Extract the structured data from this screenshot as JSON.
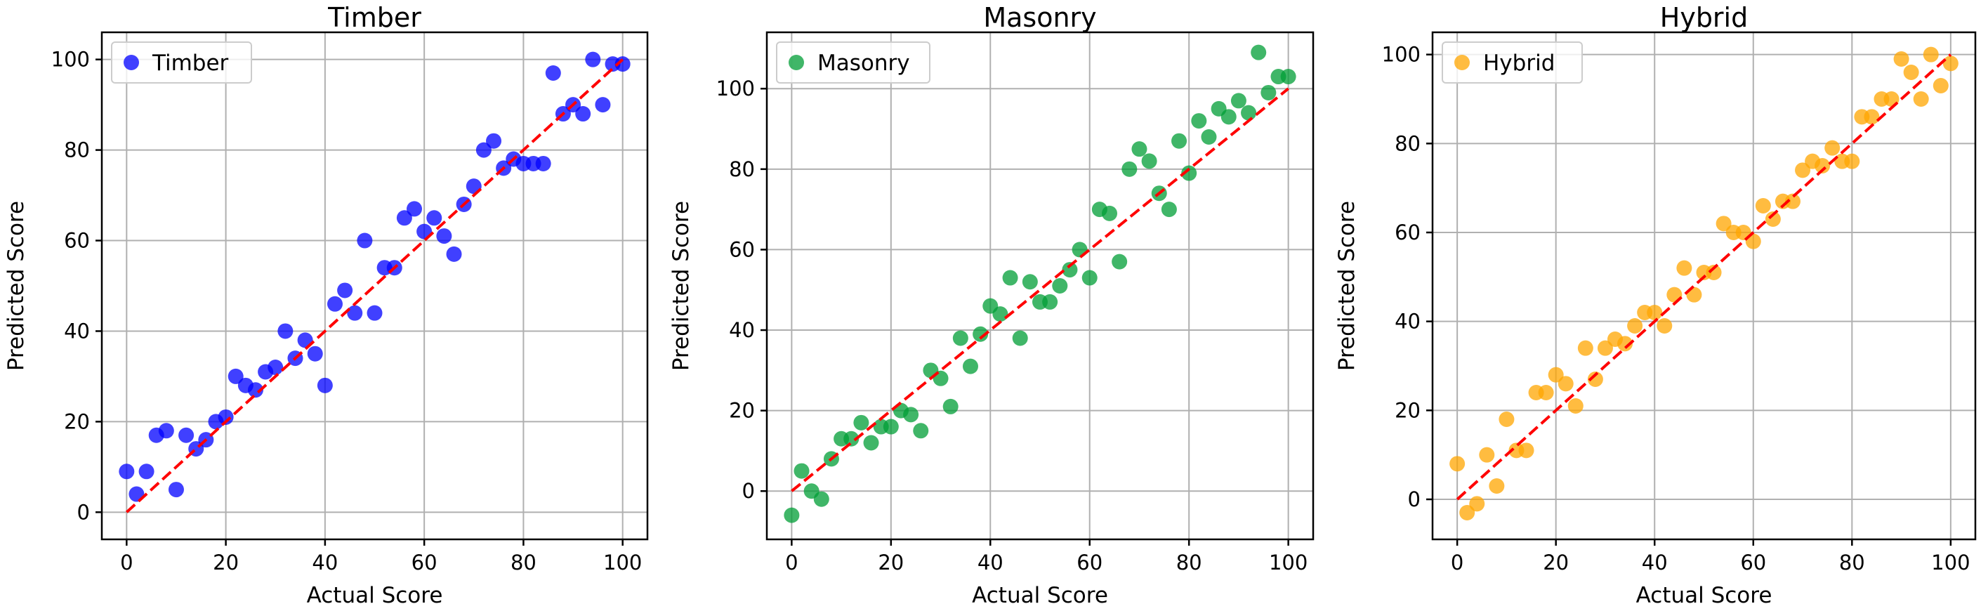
{
  "chart_data": [
    {
      "type": "scatter",
      "title": "Timber",
      "xlabel": "Actual Score",
      "ylabel": "Predicted Score",
      "xlim": [
        -5,
        105
      ],
      "ylim": [
        -6,
        106
      ],
      "xticks": [
        0,
        20,
        40,
        60,
        80,
        100
      ],
      "yticks": [
        0,
        20,
        40,
        60,
        80,
        100
      ],
      "grid": true,
      "legend_position": "top-left",
      "reference_line": {
        "from": [
          0,
          0
        ],
        "to": [
          100,
          100
        ],
        "color": "#ff0000",
        "style": "dashed"
      },
      "series": [
        {
          "name": "Timber",
          "color": "#0000ff",
          "x": [
            0,
            2,
            4,
            6,
            8,
            10,
            12,
            14,
            16,
            18,
            20,
            22,
            24,
            26,
            28,
            30,
            32,
            34,
            36,
            38,
            40,
            42,
            44,
            46,
            48,
            50,
            52,
            54,
            56,
            58,
            60,
            62,
            64,
            66,
            68,
            70,
            72,
            74,
            76,
            78,
            80,
            82,
            84,
            86,
            88,
            90,
            92,
            94,
            96,
            98,
            100
          ],
          "y": [
            9,
            4,
            9,
            17,
            18,
            5,
            17,
            14,
            16,
            20,
            21,
            30,
            28,
            27,
            31,
            32,
            40,
            34,
            38,
            35,
            28,
            46,
            49,
            44,
            60,
            44,
            54,
            54,
            65,
            67,
            62,
            65,
            61,
            57,
            68,
            72,
            80,
            82,
            76,
            78,
            77,
            77,
            77,
            97,
            88,
            90,
            88,
            100,
            90,
            99,
            99
          ]
        }
      ]
    },
    {
      "type": "scatter",
      "title": "Masonry",
      "xlabel": "Actual Score",
      "ylabel": "Predicted Score",
      "xlim": [
        -5,
        105
      ],
      "ylim": [
        -12,
        114
      ],
      "xticks": [
        0,
        20,
        40,
        60,
        80,
        100
      ],
      "yticks": [
        0,
        20,
        40,
        60,
        80,
        100
      ],
      "grid": true,
      "legend_position": "top-left",
      "reference_line": {
        "from": [
          0,
          0
        ],
        "to": [
          100,
          100
        ],
        "color": "#ff0000",
        "style": "dashed"
      },
      "series": [
        {
          "name": "Masonry",
          "color": "#009e36",
          "x": [
            0,
            2,
            4,
            6,
            8,
            10,
            12,
            14,
            16,
            18,
            20,
            22,
            24,
            26,
            28,
            30,
            32,
            34,
            36,
            38,
            40,
            42,
            44,
            46,
            48,
            50,
            52,
            54,
            56,
            58,
            60,
            62,
            64,
            66,
            68,
            70,
            72,
            74,
            76,
            78,
            80,
            82,
            84,
            86,
            88,
            90,
            92,
            94,
            96,
            98,
            100
          ],
          "y": [
            -6,
            5,
            0,
            -2,
            8,
            13,
            13,
            17,
            12,
            16,
            16,
            20,
            19,
            15,
            30,
            28,
            21,
            38,
            31,
            39,
            46,
            44,
            53,
            38,
            52,
            47,
            47,
            51,
            55,
            60,
            53,
            70,
            69,
            57,
            80,
            85,
            82,
            74,
            70,
            87,
            79,
            92,
            88,
            95,
            93,
            97,
            94,
            109,
            99,
            103,
            103
          ]
        }
      ]
    },
    {
      "type": "scatter",
      "title": "Hybrid",
      "xlabel": "Actual Score",
      "ylabel": "Predicted Score",
      "xlim": [
        -5,
        105
      ],
      "ylim": [
        -9,
        105
      ],
      "xticks": [
        0,
        20,
        40,
        60,
        80,
        100
      ],
      "yticks": [
        0,
        20,
        40,
        60,
        80,
        100
      ],
      "grid": true,
      "legend_position": "top-left",
      "reference_line": {
        "from": [
          0,
          0
        ],
        "to": [
          100,
          100
        ],
        "color": "#ff0000",
        "style": "dashed"
      },
      "series": [
        {
          "name": "Hybrid",
          "color": "#ffa500",
          "x": [
            0,
            2,
            4,
            6,
            8,
            10,
            12,
            14,
            16,
            18,
            20,
            22,
            24,
            26,
            28,
            30,
            32,
            34,
            36,
            38,
            40,
            42,
            44,
            46,
            48,
            50,
            52,
            54,
            56,
            58,
            60,
            62,
            64,
            66,
            68,
            70,
            72,
            74,
            76,
            78,
            80,
            82,
            84,
            86,
            88,
            90,
            92,
            94,
            96,
            98,
            100
          ],
          "y": [
            8,
            -3,
            -1,
            10,
            3,
            18,
            11,
            11,
            24,
            24,
            28,
            26,
            21,
            34,
            27,
            34,
            36,
            35,
            39,
            42,
            42,
            39,
            46,
            52,
            46,
            51,
            51,
            62,
            60,
            60,
            58,
            66,
            63,
            67,
            67,
            74,
            76,
            75,
            79,
            76,
            76,
            86,
            86,
            90,
            90,
            99,
            96,
            90,
            100,
            93,
            98
          ]
        }
      ]
    }
  ]
}
